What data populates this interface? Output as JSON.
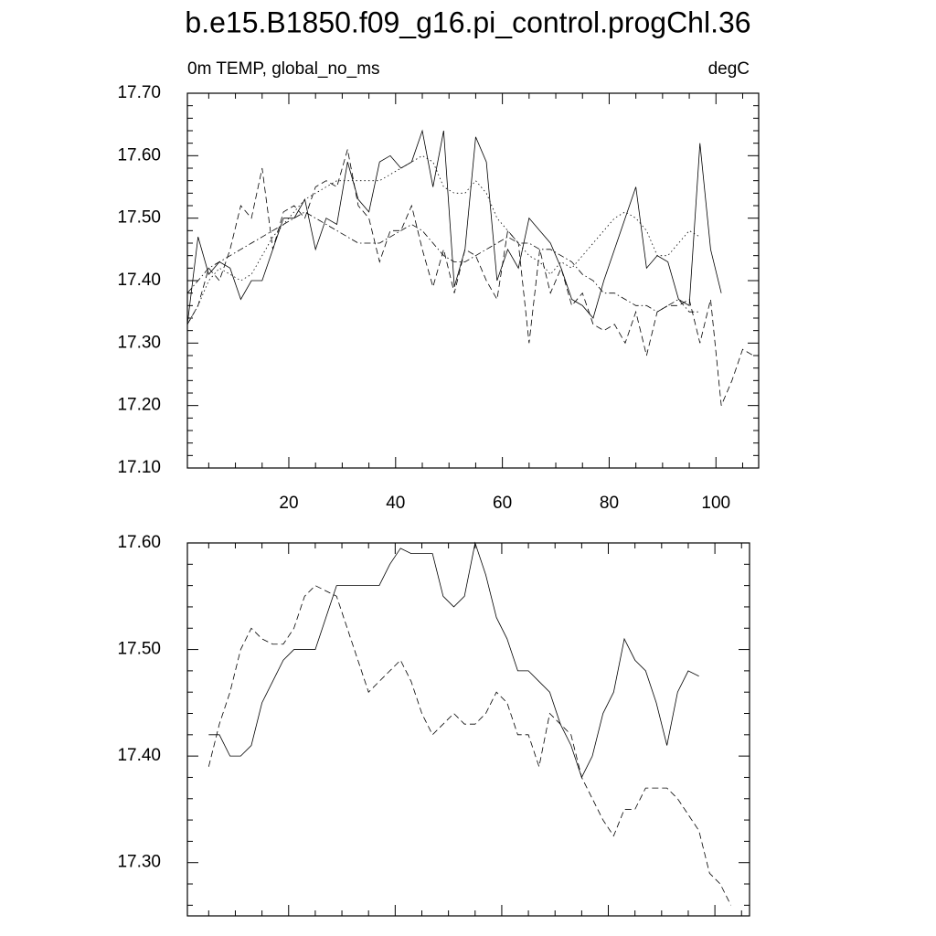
{
  "chart_data": [
    {
      "type": "line",
      "title": "b.e15.B1850.f09_g16.pi_control.progChl.36",
      "subtitle_left": "0m TEMP, global_no_ms",
      "subtitle_right": "degC",
      "x": [
        1,
        3,
        5,
        7,
        9,
        11,
        13,
        15,
        17,
        19,
        21,
        23,
        25,
        27,
        29,
        31,
        33,
        35,
        37,
        39,
        41,
        43,
        45,
        47,
        49,
        51,
        53,
        55,
        57,
        59,
        61,
        63,
        65,
        67,
        69,
        71,
        73,
        75,
        77,
        79,
        81,
        83,
        85,
        87,
        89,
        91,
        93,
        95,
        97,
        99,
        101,
        103,
        105,
        107
      ],
      "series": [
        {
          "color": "#000000",
          "style": "solid",
          "values": [
            17.33,
            17.47,
            17.41,
            17.43,
            17.42,
            17.37,
            17.4,
            17.4,
            17.45,
            17.5,
            17.5,
            17.53,
            17.45,
            17.5,
            17.49,
            17.59,
            17.53,
            17.51,
            17.59,
            17.6,
            17.58,
            17.59,
            17.64,
            17.55,
            17.64,
            17.39,
            17.45,
            17.63,
            17.59,
            17.4,
            17.45,
            17.42,
            17.5,
            17.48,
            17.46,
            17.42,
            17.37,
            17.36,
            17.34,
            17.4,
            17.45,
            17.5,
            17.55,
            17.42,
            17.44,
            17.43,
            17.37,
            17.36,
            17.62,
            17.45,
            17.38,
            null,
            null,
            null
          ]
        },
        {
          "color": "#000000",
          "style": "dashed",
          "values": [
            17.33,
            17.36,
            17.42,
            17.4,
            17.45,
            17.52,
            17.5,
            17.58,
            17.45,
            17.51,
            17.52,
            17.5,
            17.55,
            17.56,
            17.55,
            17.61,
            17.52,
            17.5,
            17.43,
            17.48,
            17.48,
            17.52,
            17.45,
            17.39,
            17.45,
            17.38,
            17.45,
            17.44,
            17.4,
            17.37,
            17.48,
            17.46,
            17.3,
            17.45,
            17.38,
            17.42,
            17.36,
            17.38,
            17.33,
            17.32,
            17.33,
            17.3,
            17.35,
            17.28,
            17.35,
            17.36,
            17.36,
            17.37,
            17.3,
            17.37,
            17.2,
            17.24,
            17.29,
            17.28
          ]
        },
        {
          "color": "#000000",
          "style": "dotted",
          "values": [
            17.33,
            17.36,
            17.4,
            17.42,
            17.41,
            17.4,
            17.41,
            17.44,
            17.47,
            17.49,
            17.51,
            17.53,
            17.54,
            17.55,
            17.56,
            17.56,
            17.56,
            17.56,
            17.56,
            17.57,
            17.58,
            17.59,
            17.6,
            17.59,
            17.55,
            17.54,
            17.54,
            17.56,
            17.54,
            17.5,
            17.48,
            17.46,
            17.44,
            17.43,
            17.41,
            17.43,
            17.42,
            17.44,
            17.46,
            17.48,
            17.5,
            17.51,
            17.5,
            17.48,
            17.44,
            17.44,
            17.46,
            17.48,
            17.47,
            null,
            null,
            null,
            null,
            null
          ]
        },
        {
          "color": "#000000",
          "style": "dashdot",
          "values": [
            17.38,
            17.4,
            17.42,
            17.43,
            17.44,
            17.45,
            17.46,
            17.47,
            17.48,
            17.49,
            17.5,
            17.51,
            17.5,
            17.49,
            17.48,
            17.47,
            17.46,
            17.46,
            17.46,
            17.47,
            17.48,
            17.49,
            17.48,
            17.46,
            17.44,
            17.43,
            17.43,
            17.44,
            17.45,
            17.46,
            17.47,
            17.46,
            17.46,
            17.45,
            17.45,
            17.44,
            17.43,
            17.41,
            17.4,
            17.38,
            17.38,
            17.37,
            17.36,
            17.36,
            17.35,
            17.36,
            17.37,
            17.35,
            17.35,
            null,
            null,
            null,
            null,
            null
          ]
        }
      ],
      "xlim": [
        1,
        108
      ],
      "xticks": [
        20,
        40,
        60,
        80,
        100
      ],
      "ylim": [
        17.1,
        17.7
      ],
      "yticks": [
        {
          "value": 17.1,
          "label": "17.10"
        },
        {
          "value": 17.2,
          "label": "17.20"
        },
        {
          "value": 17.3,
          "label": "17.30"
        },
        {
          "value": 17.4,
          "label": "17.40"
        },
        {
          "value": 17.5,
          "label": "17.50"
        },
        {
          "value": 17.6,
          "label": "17.60"
        },
        {
          "value": 17.7,
          "label": "17.70"
        }
      ]
    },
    {
      "type": "line",
      "x": [
        1,
        3,
        5,
        7,
        9,
        11,
        13,
        15,
        17,
        19,
        21,
        23,
        25,
        27,
        29,
        31,
        33,
        35,
        37,
        39,
        41,
        43,
        45,
        47,
        49,
        51,
        53,
        55,
        57,
        59,
        61,
        63,
        65,
        67,
        69,
        71,
        73,
        75,
        77,
        79,
        81,
        83,
        85,
        87,
        89,
        91,
        93,
        95,
        97,
        99,
        101,
        103,
        105,
        107
      ],
      "series": [
        {
          "color": "#000000",
          "style": "solid",
          "values": [
            null,
            null,
            17.42,
            17.42,
            17.4,
            17.4,
            17.41,
            17.45,
            17.47,
            17.49,
            17.5,
            17.5,
            17.5,
            17.53,
            17.56,
            17.56,
            17.56,
            17.56,
            17.56,
            17.58,
            17.595,
            17.59,
            17.59,
            17.59,
            17.55,
            17.54,
            17.55,
            17.6,
            17.57,
            17.53,
            17.51,
            17.48,
            17.48,
            17.47,
            17.46,
            17.43,
            17.41,
            17.38,
            17.4,
            17.44,
            17.46,
            17.51,
            17.49,
            17.48,
            17.45,
            17.41,
            17.46,
            17.48,
            17.475,
            null,
            null,
            null,
            null,
            null
          ]
        },
        {
          "color": "#000000",
          "style": "dashed",
          "values": [
            null,
            null,
            17.39,
            17.43,
            17.46,
            17.5,
            17.52,
            17.51,
            17.505,
            17.505,
            17.52,
            17.55,
            17.56,
            17.555,
            17.55,
            17.52,
            17.49,
            17.46,
            17.47,
            17.48,
            17.49,
            17.47,
            17.44,
            17.42,
            17.43,
            17.44,
            17.43,
            17.43,
            17.44,
            17.46,
            17.45,
            17.42,
            17.42,
            17.39,
            17.44,
            17.43,
            17.42,
            17.38,
            17.36,
            17.34,
            17.325,
            17.35,
            17.35,
            17.37,
            17.37,
            17.37,
            17.36,
            17.345,
            17.33,
            17.29,
            17.28,
            17.26,
            null,
            null
          ]
        }
      ],
      "xlim": [
        1,
        106.5
      ],
      "xticks": [
        20,
        40,
        60,
        80,
        100
      ],
      "ylim": [
        17.25,
        17.6
      ],
      "yticks": [
        {
          "value": 17.3,
          "label": "17.30"
        },
        {
          "value": 17.4,
          "label": "17.40"
        },
        {
          "value": 17.5,
          "label": "17.50"
        },
        {
          "value": 17.6,
          "label": "17.60"
        }
      ]
    }
  ]
}
